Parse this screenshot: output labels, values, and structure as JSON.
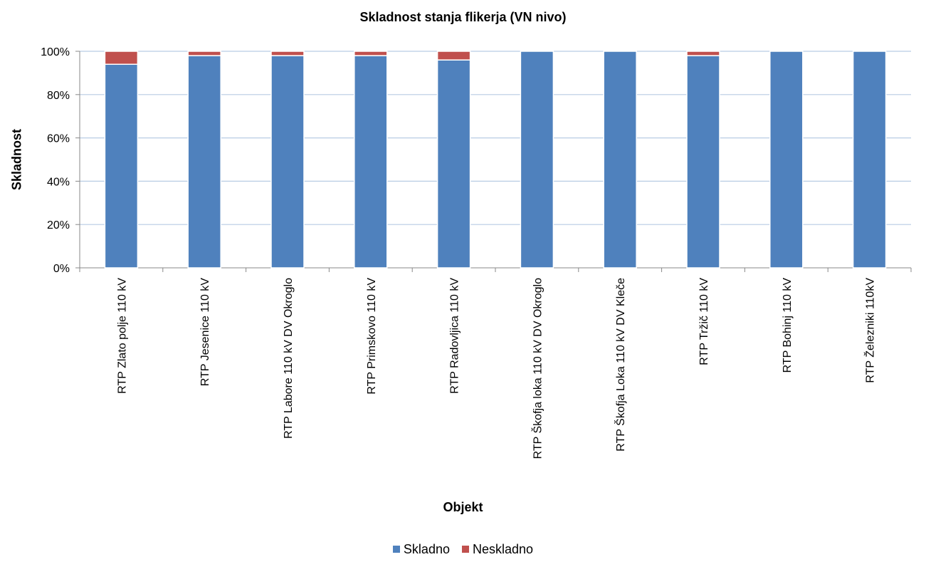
{
  "colors": {
    "skladno": "#4F81BD",
    "neskladno": "#C0504D",
    "grid": "#B8CCE4",
    "axis": "#888888"
  },
  "chart_data": {
    "type": "bar",
    "stacked": true,
    "title": "Skladnost stanja flikerja (VN nivo)",
    "xlabel": "Objekt",
    "ylabel": "Skladnost",
    "ylim": [
      0,
      100
    ],
    "yticks": [
      "0%",
      "20%",
      "40%",
      "60%",
      "80%",
      "100%"
    ],
    "grid": true,
    "legend_position": "bottom",
    "categories": [
      "RTP Zlato polje 110 kV",
      "RTP Jesenice 110 kV",
      "RTP Labore 110 kV DV Okroglo",
      "RTP Primskovo 110 kV",
      "RTP Radovljica 110 kV",
      "RTP Škofja loka 110 kV DV Okroglo",
      "RTP Škofja Loka 110 kV DV Kleče",
      "RTP Tržič 110 kV",
      "RTP Bohinj 110 kV",
      "RTP Železniki 110kV"
    ],
    "series": [
      {
        "name": "Skladno",
        "values": [
          94,
          98,
          98,
          98,
          96,
          100,
          100,
          98,
          100,
          100
        ]
      },
      {
        "name": "Neskladno",
        "values": [
          6,
          2,
          2,
          2,
          4,
          0,
          0,
          2,
          0,
          0
        ]
      }
    ]
  }
}
